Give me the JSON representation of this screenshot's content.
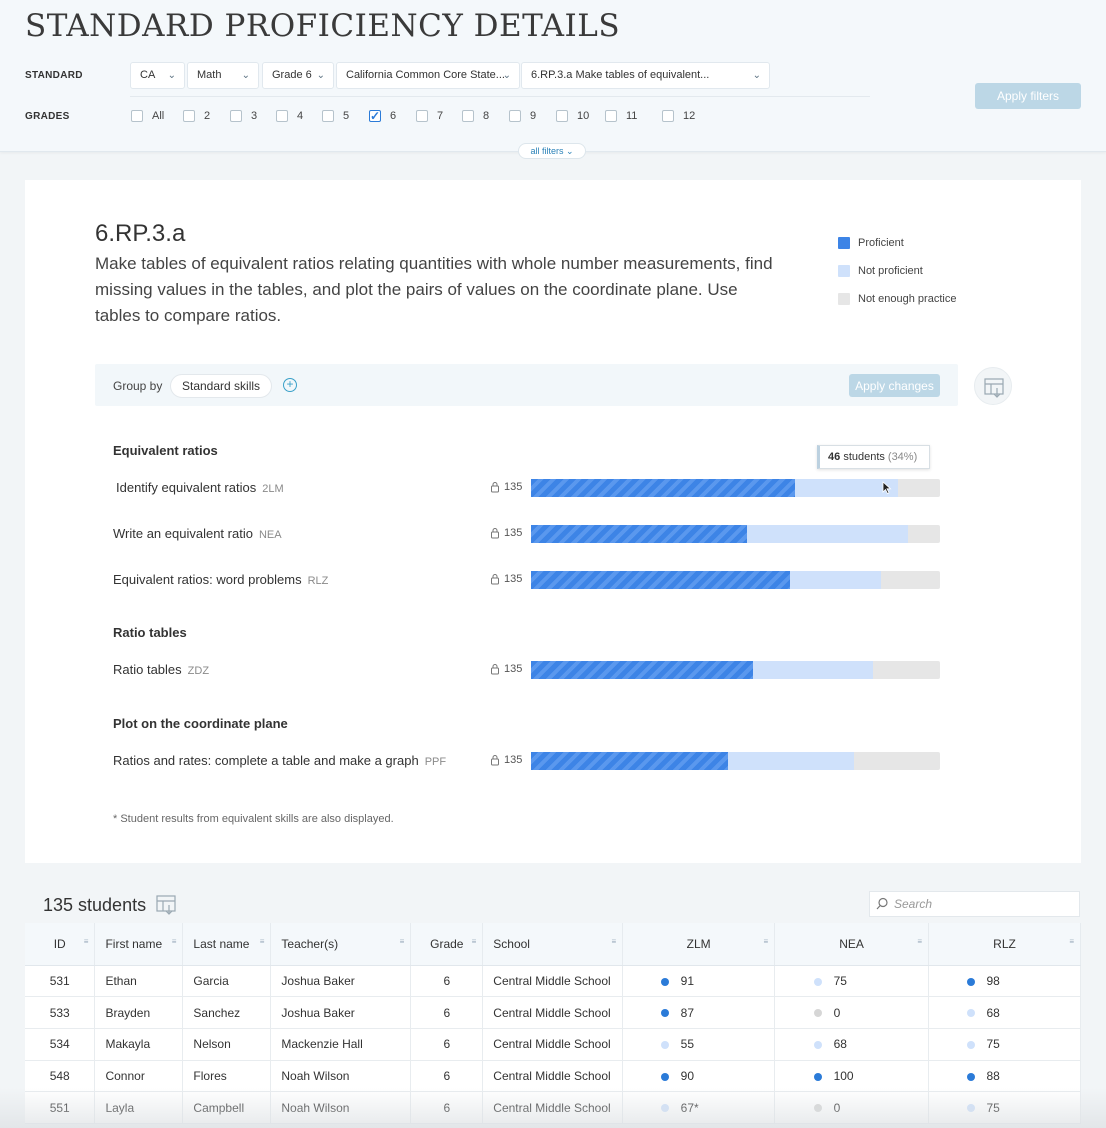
{
  "header": {
    "title": "STANDARD PROFICIENCY DETAILS",
    "standard_label": "STANDARD",
    "grades_label": "GRADES",
    "dropdowns": [
      "CA",
      "Math",
      "Grade 6",
      "California Common Core State...",
      "6.RP.3.a Make tables of equivalent..."
    ],
    "grades": [
      {
        "label": "All",
        "checked": false
      },
      {
        "label": "2",
        "checked": false
      },
      {
        "label": "3",
        "checked": false
      },
      {
        "label": "4",
        "checked": false
      },
      {
        "label": "5",
        "checked": false
      },
      {
        "label": "6",
        "checked": true
      },
      {
        "label": "7",
        "checked": false
      },
      {
        "label": "8",
        "checked": false
      },
      {
        "label": "9",
        "checked": false
      },
      {
        "label": "10",
        "checked": false
      },
      {
        "label": "11",
        "checked": false
      },
      {
        "label": "12",
        "checked": false
      }
    ],
    "apply_filters": "Apply filters",
    "all_filters": "all filters"
  },
  "standard": {
    "code": "6.RP.3.a",
    "description": "Make tables of equivalent ratios relating quantities with whole number measurements, find missing values in the tables, and plot the pairs of values on the coordinate plane. Use tables to compare ratios."
  },
  "legend": [
    {
      "label": "Proficient",
      "color": "#3d84e6"
    },
    {
      "label": "Not proficient",
      "color": "#cfe1fb"
    },
    {
      "label": "Not enough practice",
      "color": "#e6e6e6"
    }
  ],
  "group_by": {
    "label": "Group by",
    "value": "Standard skills",
    "apply": "Apply changes"
  },
  "tooltip": {
    "count": "46",
    "unit": "students",
    "pct": "(34%)"
  },
  "sections": [
    {
      "title": "Equivalent ratios",
      "skills": [
        {
          "name": "Identify equivalent ratios",
          "code": "2LM",
          "count": "135",
          "proficient": 0.646,
          "not_proficient": 0.251
        },
        {
          "name": "Write an equivalent ratio",
          "code": "NEA",
          "count": "135",
          "proficient": 0.528,
          "not_proficient": 0.393
        },
        {
          "name": "Equivalent ratios: word problems",
          "code": "RLZ",
          "count": "135",
          "proficient": 0.633,
          "not_proficient": 0.222
        }
      ]
    },
    {
      "title": "Ratio tables",
      "skills": [
        {
          "name": "Ratio tables",
          "code": "ZDZ",
          "count": "135",
          "proficient": 0.543,
          "not_proficient": 0.293
        }
      ]
    },
    {
      "title": "Plot on the coordinate plane",
      "skills": [
        {
          "name": "Ratios and rates: complete a table and make a graph",
          "code": "PPF",
          "count": "135",
          "proficient": 0.482,
          "not_proficient": 0.308
        }
      ]
    }
  ],
  "footnote": "* Student results from equivalent skills are also displayed.",
  "students": {
    "count_label": "135 students",
    "search_placeholder": "Search",
    "columns": [
      "ID",
      "First name",
      "Last name",
      "Teacher(s)",
      "Grade",
      "School",
      "ZLM",
      "NEA",
      "RLZ"
    ],
    "rows": [
      {
        "id": "531",
        "first": "Ethan",
        "last": "Garcia",
        "teacher": "Joshua Baker",
        "grade": "6",
        "school": "Central Middle School",
        "scores": [
          {
            "v": "91",
            "s": "p"
          },
          {
            "v": "75",
            "s": "np"
          },
          {
            "v": "98",
            "s": "p"
          }
        ]
      },
      {
        "id": "533",
        "first": "Brayden",
        "last": "Sanchez",
        "teacher": "Joshua Baker",
        "grade": "6",
        "school": "Central Middle School",
        "scores": [
          {
            "v": "87",
            "s": "p"
          },
          {
            "v": "0",
            "s": "nep"
          },
          {
            "v": "68",
            "s": "np"
          }
        ]
      },
      {
        "id": "534",
        "first": "Makayla",
        "last": "Nelson",
        "teacher": "Mackenzie Hall",
        "grade": "6",
        "school": "Central Middle School",
        "scores": [
          {
            "v": "55",
            "s": "np"
          },
          {
            "v": "68",
            "s": "np"
          },
          {
            "v": "75",
            "s": "np"
          }
        ]
      },
      {
        "id": "548",
        "first": "Connor",
        "last": "Flores",
        "teacher": "Noah Wilson",
        "grade": "6",
        "school": "Central Middle School",
        "scores": [
          {
            "v": "90",
            "s": "p"
          },
          {
            "v": "100",
            "s": "p"
          },
          {
            "v": "88",
            "s": "p"
          }
        ]
      },
      {
        "id": "551",
        "first": "Layla",
        "last": "Campbell",
        "teacher": "Noah Wilson",
        "grade": "6",
        "school": "Central Middle School",
        "scores": [
          {
            "v": "67*",
            "s": "np"
          },
          {
            "v": "0",
            "s": "nep"
          },
          {
            "v": "75",
            "s": "np"
          }
        ]
      }
    ]
  },
  "colors": {
    "proficient": "#2b7bd8",
    "not_proficient": "#cfe1fb",
    "not_enough": "#d6d6d6"
  }
}
